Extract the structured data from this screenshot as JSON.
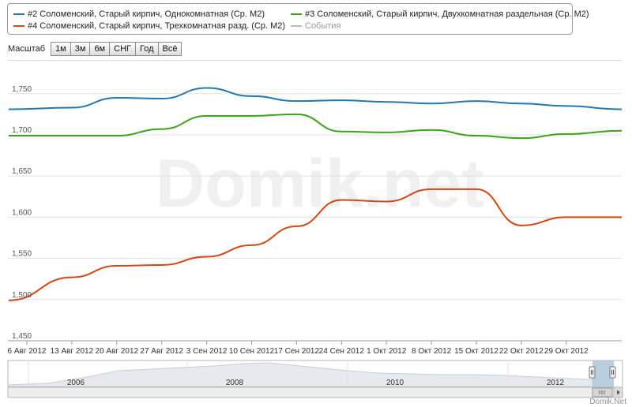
{
  "legend": {
    "items": [
      {
        "label": "#2 Соломенский, Старый кирпич, Однокомнатная (Ср. М2)",
        "color": "#1f78b4"
      },
      {
        "label": "#3 Соломенский, Старый кирпич, Двухкомнатная раздельная (Ср. М2)",
        "color": "#3aa515"
      },
      {
        "label": "#4 Соломенский, Старый кирпич, Трехкомнатная разд. (Ср. М2)",
        "color": "#d9450f"
      },
      {
        "label": "События",
        "color": "#bbbbbb"
      }
    ]
  },
  "range_selector": {
    "label": "Масштаб",
    "buttons": [
      "1м",
      "3м",
      "6м",
      "СНГ",
      "Год",
      "Всё"
    ]
  },
  "watermark": "Domik.net",
  "credit": "Domik.Net",
  "chart_data": {
    "type": "line",
    "x": [
      "2012-08-06",
      "2012-08-13",
      "2012-08-20",
      "2012-08-27",
      "2012-09-03",
      "2012-09-10",
      "2012-09-17",
      "2012-09-24",
      "2012-10-01",
      "2012-10-08",
      "2012-10-15",
      "2012-10-22",
      "2012-10-29",
      "2012-11-03"
    ],
    "x_tick_labels": [
      "6 Авг 2012",
      "13 Авг 2012",
      "20 Авг 2012",
      "27 Авг 2012",
      "3 Сен 2012",
      "10 Сен 2012",
      "17 Сен 2012",
      "24 Сен 2012",
      "1 Окт 2012",
      "8 Окт 2012",
      "15 Окт 2012",
      "22 Окт 2012",
      "29 Окт 2012"
    ],
    "y_ticks": [
      "1,450",
      "1,500",
      "1,550",
      "1,600",
      "1,650",
      "1,700",
      "1,750"
    ],
    "ylim": [
      1450,
      1790
    ],
    "grid": true,
    "series": [
      {
        "name": "#2 Соломенский, Старый кирпич, Однокомнатная (Ср. М2)",
        "color": "#1f78b4",
        "values": [
          1731,
          1733,
          1745,
          1744,
          1757,
          1747,
          1741,
          1742,
          1740,
          1738,
          1741,
          1738,
          1735,
          1731
        ]
      },
      {
        "name": "#3 Соломенский, Старый кирпич, Двухкомнатная раздельная (Ср. М2)",
        "color": "#3aa515",
        "values": [
          1699,
          1699,
          1699,
          1707,
          1723,
          1723,
          1725,
          1704,
          1703,
          1706,
          1699,
          1696,
          1701,
          1705
        ]
      },
      {
        "name": "#4 Соломенский, Старый кирпич, Трехкомнатная разд. (Ср. М2)",
        "color": "#d9450f",
        "values": [
          1499,
          1527,
          1541,
          1542,
          1552,
          1566,
          1589,
          1621,
          1619,
          1634,
          1634,
          1590,
          1600,
          1600
        ]
      }
    ]
  },
  "navigator": {
    "year_labels": [
      "2006",
      "2008",
      "2010",
      "2012"
    ]
  }
}
